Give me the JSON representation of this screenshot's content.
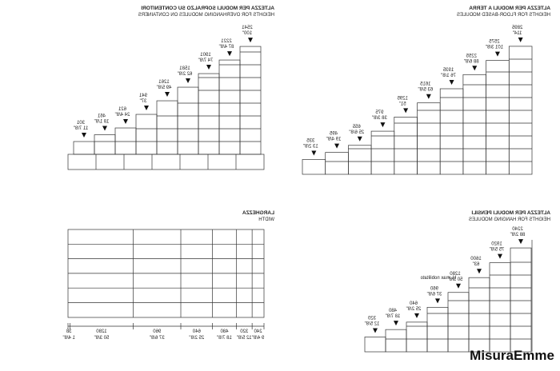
{
  "panels": [
    {
      "title": "ALTEZZA PER MODULI SOPRALZO SU CONTENITORI",
      "subtitle": "HEIGHTS FOR OVERHANGING MODULES ON CONTAINERS",
      "heights": [
        {
          "mm": 301,
          "in": "11 7/8\""
        },
        {
          "mm": 461,
          "in": "18 1/8\""
        },
        {
          "mm": 621,
          "in": "24 4/8\""
        },
        {
          "mm": 941,
          "in": "37\""
        },
        {
          "mm": 1261,
          "in": "49 5/8\""
        },
        {
          "mm": 1581,
          "in": "62 2/8\""
        },
        {
          "mm": 1901,
          "in": "74 7/8\""
        },
        {
          "mm": 2221,
          "in": "87 4/8\""
        },
        {
          "mm": 2541,
          "in": "100\""
        }
      ]
    },
    {
      "title": "ALTEZZA PER MODULI A TERRA",
      "subtitle": "HEIGHTS FOR FLOOR-BASED MODULES",
      "heights": [
        {
          "mm": 335,
          "in": "13 2/8\""
        },
        {
          "mm": 495,
          "in": "19 4/8\""
        },
        {
          "mm": 655,
          "in": "25 6/8\""
        },
        {
          "mm": 975,
          "in": "38 3/8\""
        },
        {
          "mm": 1295,
          "in": "51\""
        },
        {
          "mm": 1615,
          "in": "63 5/8\""
        },
        {
          "mm": 1935,
          "in": "76 1/8\""
        },
        {
          "mm": 2255,
          "in": "88 6/8\""
        },
        {
          "mm": 2575,
          "in": "101 3/8\""
        },
        {
          "mm": 2895,
          "in": "114\""
        }
      ]
    },
    {
      "title": "LARGHEZZA",
      "subtitle": "WIDTH",
      "widths": [
        {
          "mm": 240,
          "in": "9 4/8\""
        },
        {
          "mm": 320,
          "in": "12 5/8\""
        },
        {
          "mm": 480,
          "in": "18 7/8\""
        },
        {
          "mm": 640,
          "in": "25 2/8\""
        },
        {
          "mm": 960,
          "in": "37 6/8\""
        },
        {
          "mm": 1280,
          "in": "50 3/8\""
        },
        {
          "mm": 38,
          "in": "1 4/8\""
        }
      ]
    },
    {
      "title": "ALTEZZA PER MODULI PENSILI",
      "subtitle": "HEIGHTS FOR HANGING MODULES",
      "note": "H. max nobilitato",
      "heights": [
        {
          "mm": 320,
          "in": "12 5/8\""
        },
        {
          "mm": 480,
          "in": "18 7/8\""
        },
        {
          "mm": 640,
          "in": "25 2/8\""
        },
        {
          "mm": 960,
          "in": "37 6/8\""
        },
        {
          "mm": 1280,
          "in": "50 3/8\""
        },
        {
          "mm": 1600,
          "in": "63\""
        },
        {
          "mm": 1920,
          "in": "75 5/8\""
        },
        {
          "mm": 2240,
          "in": "88 2/8\""
        }
      ]
    }
  ],
  "logo": "MisuraEmme"
}
